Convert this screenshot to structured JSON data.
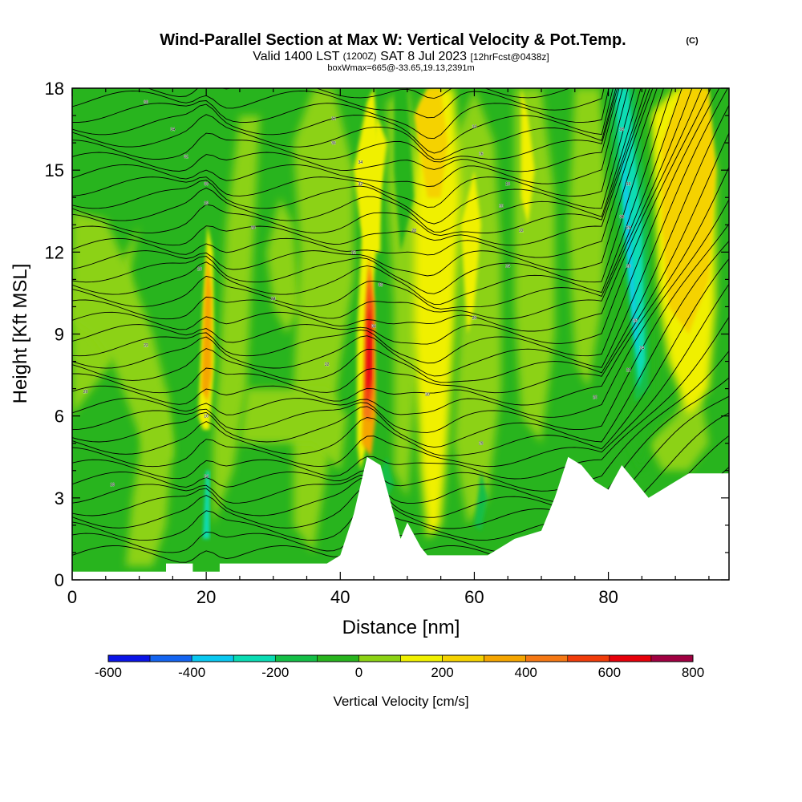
{
  "chart_data": {
    "type": "heatmap",
    "title": "Wind-Parallel Section at Max W: Vertical Velocity & Pot.Temp.",
    "title_mark": "(C)",
    "subtitle_parts": [
      "Valid 1400 LST",
      "(1200Z)",
      "SAT 8 Jul 2023",
      "[12hrFcst@0438z]"
    ],
    "subtitle2": "boxWmax=665@-33.65,19.13,2391m",
    "xlabel": "Distance [nm]",
    "ylabel": "Height [Kft MSL]",
    "xlim": [
      0,
      98
    ],
    "ylim": [
      0,
      18
    ],
    "xticks": [
      "0",
      "20",
      "40",
      "60",
      "80"
    ],
    "xtick_values": [
      0,
      20,
      40,
      60,
      80
    ],
    "yticks": [
      "0",
      "3",
      "6",
      "9",
      "12",
      "15",
      "18"
    ],
    "ytick_values": [
      0,
      3,
      6,
      9,
      12,
      15,
      18
    ],
    "colorbar": {
      "label": "Vertical Velocity [cm/s]",
      "tick_labels": [
        "-600",
        "-400",
        "-200",
        "0",
        "200",
        "400",
        "600",
        "800"
      ],
      "tick_values": [
        -600,
        -400,
        -200,
        0,
        200,
        400,
        600,
        800
      ],
      "bins": [
        -600,
        -500,
        -400,
        -300,
        -200,
        -100,
        0,
        100,
        200,
        300,
        400,
        500,
        600,
        700,
        800
      ],
      "colors": [
        "#0a14e6",
        "#1464f0",
        "#0ac8f0",
        "#0adcb4",
        "#14be46",
        "#28b41e",
        "#8cd214",
        "#f0f000",
        "#f5d200",
        "#f5a500",
        "#f57814",
        "#f03c0a",
        "#e6000a",
        "#a00041"
      ]
    },
    "vertical_velocity_features": [
      {
        "x": 20,
        "y_range": [
          6.5,
          12.5
        ],
        "peak_cm_s": 300,
        "sign": "up"
      },
      {
        "x": 44,
        "y_range": [
          4.5,
          12
        ],
        "peak_cm_s": 665,
        "sign": "up"
      },
      {
        "x": 54,
        "y_range": [
          3,
          18
        ],
        "peak_cm_s": 200,
        "sign": "up"
      },
      {
        "x": 84,
        "y_range": [
          6,
          18
        ],
        "peak_cm_s": -300,
        "sign": "down"
      },
      {
        "x": 90,
        "y_range": [
          8,
          18
        ],
        "peak_cm_s": 350,
        "sign": "up"
      }
    ],
    "terrain_height_kft": [
      [
        0,
        0.3
      ],
      [
        14,
        0.3
      ],
      [
        14,
        0.6
      ],
      [
        18,
        0.6
      ],
      [
        18,
        0.3
      ],
      [
        22,
        0.3
      ],
      [
        22,
        0.6
      ],
      [
        30,
        0.6
      ],
      [
        38,
        0.6
      ],
      [
        40,
        0.9
      ],
      [
        42,
        2.4
      ],
      [
        44,
        4.5
      ],
      [
        46,
        4.2
      ],
      [
        48,
        2.4
      ],
      [
        49,
        1.5
      ],
      [
        50,
        2.1
      ],
      [
        52,
        1.2
      ],
      [
        53,
        0.9
      ],
      [
        55,
        0.9
      ],
      [
        62,
        0.9
      ],
      [
        66,
        1.5
      ],
      [
        70,
        1.8
      ],
      [
        72,
        3.0
      ],
      [
        74,
        4.5
      ],
      [
        76,
        4.2
      ],
      [
        78,
        3.6
      ],
      [
        80,
        3.3
      ],
      [
        82,
        4.2
      ],
      [
        84,
        3.6
      ],
      [
        86,
        3.0
      ],
      [
        88,
        3.3
      ],
      [
        90,
        3.6
      ],
      [
        92,
        3.9
      ],
      [
        98,
        3.9
      ]
    ],
    "theta_contour_labels": [
      "36",
      "34",
      "32",
      "30",
      "29",
      "28",
      "26",
      "24",
      "22",
      "20",
      "18",
      "16",
      "14",
      "12"
    ]
  }
}
